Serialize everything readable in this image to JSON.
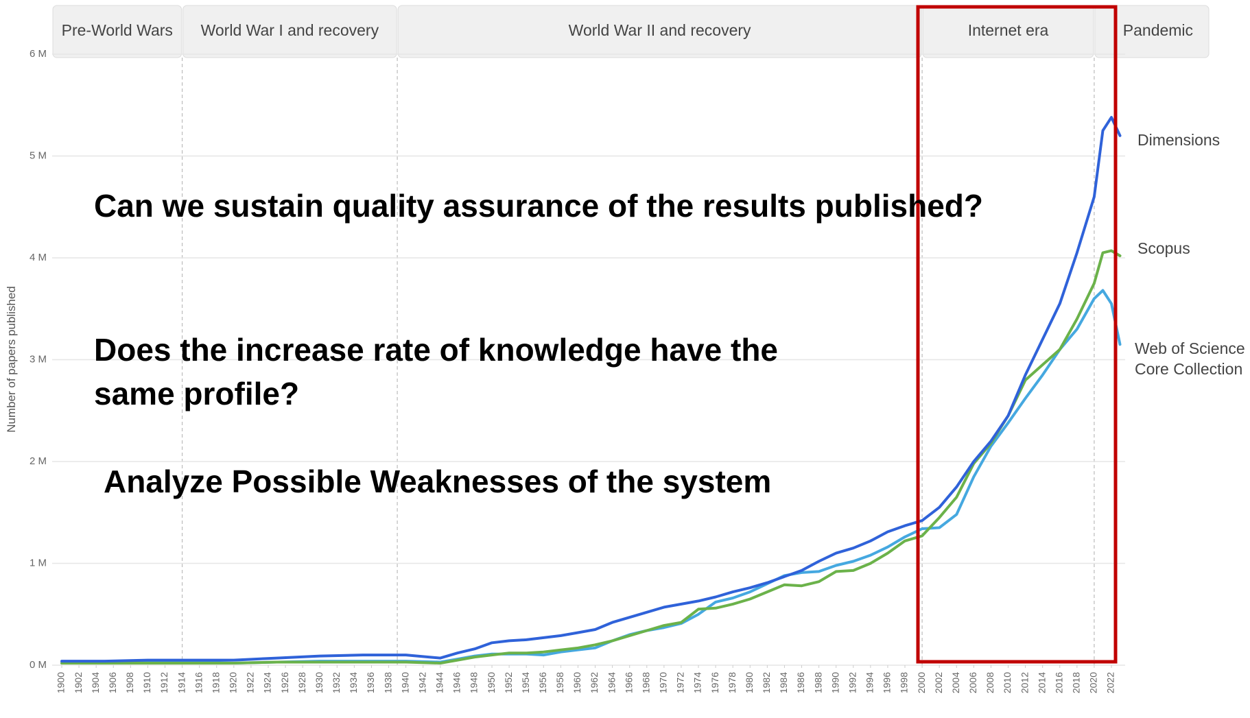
{
  "chart_data": {
    "type": "line",
    "y_label": "Number of papers published",
    "eras": [
      {
        "label": "Pre-World Wars"
      },
      {
        "label": "World War I and recovery",
        "start": 1914
      },
      {
        "label": "World War II and recovery",
        "start": 1939
      },
      {
        "label": "Internet era",
        "start": 2000
      },
      {
        "label": "Pandemic",
        "start": 2020
      }
    ],
    "x": [
      1900,
      1905,
      1910,
      1915,
      1920,
      1925,
      1930,
      1935,
      1940,
      1944,
      1946,
      1948,
      1950,
      1952,
      1954,
      1956,
      1958,
      1960,
      1962,
      1964,
      1966,
      1968,
      1970,
      1972,
      1974,
      1976,
      1978,
      1980,
      1982,
      1984,
      1986,
      1988,
      1990,
      1992,
      1994,
      1996,
      1998,
      2000,
      2002,
      2004,
      2006,
      2008,
      2010,
      2012,
      2014,
      2016,
      2018,
      2020,
      2021,
      2022,
      2023
    ],
    "series": [
      {
        "name": "Web of Science Core Collection",
        "color": "#45a8e0",
        "values": [
          0.02,
          0.02,
          0.03,
          0.03,
          0.02,
          0.03,
          0.04,
          0.04,
          0.04,
          0.03,
          0.06,
          0.09,
          0.11,
          0.11,
          0.11,
          0.1,
          0.13,
          0.15,
          0.17,
          0.24,
          0.3,
          0.34,
          0.37,
          0.41,
          0.5,
          0.62,
          0.66,
          0.72,
          0.8,
          0.88,
          0.91,
          0.92,
          0.98,
          1.02,
          1.08,
          1.16,
          1.26,
          1.34,
          1.35,
          1.48,
          1.85,
          2.15,
          2.38,
          2.62,
          2.85,
          3.1,
          3.3,
          3.6,
          3.68,
          3.55,
          3.15
        ]
      },
      {
        "name": "Scopus",
        "color": "#6bb24a",
        "values": [
          0.02,
          0.02,
          0.02,
          0.02,
          0.02,
          0.03,
          0.03,
          0.03,
          0.03,
          0.02,
          0.05,
          0.08,
          0.1,
          0.12,
          0.12,
          0.13,
          0.15,
          0.17,
          0.2,
          0.24,
          0.29,
          0.34,
          0.39,
          0.42,
          0.55,
          0.56,
          0.6,
          0.65,
          0.72,
          0.79,
          0.78,
          0.82,
          0.92,
          0.93,
          1.0,
          1.1,
          1.22,
          1.27,
          1.45,
          1.65,
          1.98,
          2.18,
          2.45,
          2.8,
          2.95,
          3.1,
          3.4,
          3.75,
          4.05,
          4.07,
          4.02
        ]
      },
      {
        "name": "Dimensions",
        "color": "#2f62d9",
        "values": [
          0.04,
          0.04,
          0.05,
          0.05,
          0.05,
          0.07,
          0.09,
          0.1,
          0.1,
          0.07,
          0.12,
          0.16,
          0.22,
          0.24,
          0.25,
          0.27,
          0.29,
          0.32,
          0.35,
          0.42,
          0.47,
          0.52,
          0.57,
          0.6,
          0.63,
          0.67,
          0.72,
          0.76,
          0.81,
          0.87,
          0.93,
          1.02,
          1.1,
          1.15,
          1.22,
          1.31,
          1.37,
          1.42,
          1.55,
          1.75,
          2.0,
          2.2,
          2.45,
          2.85,
          3.2,
          3.55,
          4.05,
          4.6,
          5.25,
          5.38,
          5.2
        ]
      }
    ],
    "xlim": [
      1900,
      2022
    ],
    "xticks": [
      1900,
      1902,
      1904,
      1906,
      1908,
      1910,
      1912,
      1914,
      1916,
      1918,
      1920,
      1922,
      1924,
      1926,
      1928,
      1930,
      1932,
      1934,
      1936,
      1938,
      1940,
      1942,
      1944,
      1946,
      1948,
      1950,
      1952,
      1954,
      1956,
      1958,
      1960,
      1962,
      1964,
      1966,
      1968,
      1970,
      1972,
      1974,
      1976,
      1978,
      1980,
      1982,
      1984,
      1986,
      1988,
      1990,
      1992,
      1994,
      1996,
      1998,
      2000,
      2002,
      2004,
      2006,
      2008,
      2010,
      2012,
      2014,
      2016,
      2018,
      2020,
      2022
    ],
    "ylim": [
      0,
      6
    ],
    "yticks": [
      {
        "value": 0,
        "label": "0 M"
      },
      {
        "value": 1,
        "label": "1 M"
      },
      {
        "value": 2,
        "label": "2 M"
      },
      {
        "value": 3,
        "label": "3 M"
      },
      {
        "value": 4,
        "label": "4 M"
      },
      {
        "value": 5,
        "label": "5 M"
      },
      {
        "value": 6,
        "label": "6 M"
      }
    ],
    "grid": true,
    "annotations": [
      "Can we sustain quality assurance of the results published?",
      "Does the increase rate of knowledge have the same profile?",
      "Analyze Possible Weaknesses of the system"
    ]
  }
}
